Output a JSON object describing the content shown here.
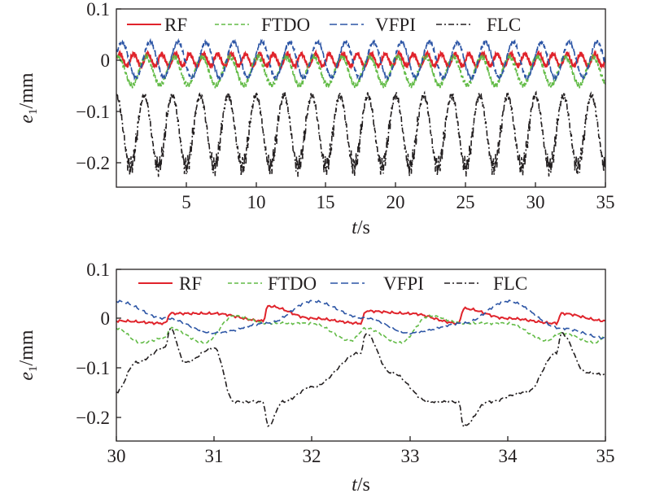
{
  "chart_data": [
    {
      "type": "line",
      "xlabel_italic": "t",
      "xlabel_unit": "/s",
      "ylabel_italic": "e",
      "ylabel_sub": "1",
      "ylabel_unit": "/mm",
      "xlim": [
        0,
        35
      ],
      "ylim": [
        -0.25,
        0.1
      ],
      "xticks": [
        "5",
        "10",
        "15",
        "20",
        "25",
        "30",
        "35"
      ],
      "yticks": [
        "0.1",
        "0",
        "−0.1",
        "−0.2"
      ],
      "grid": false,
      "legend_position": "top",
      "series": [
        {
          "name": "RF",
          "color": "#e0232b",
          "dash": "solid",
          "description": "ripple around 0, amplitude about ±0.015, period about 2 s"
        },
        {
          "name": "FTDO",
          "color": "#62bb46",
          "dash": "dashed",
          "description": "oscillates between about -0.05 and 0.01, period about 2 s"
        },
        {
          "name": "VFPI",
          "color": "#2c55a5",
          "dash": "long-dashed",
          "description": "oscillates between about -0.04 and 0.035, period about 2 s"
        },
        {
          "name": "FLC",
          "color": "#231f20",
          "dash": "dash-dot",
          "description": "oscillates between about -0.22 and -0.06, period about 2 s"
        }
      ]
    },
    {
      "type": "line",
      "xlabel_italic": "t",
      "xlabel_unit": "/s",
      "ylabel_italic": "e",
      "ylabel_sub": "1",
      "ylabel_unit": "/mm",
      "xlim": [
        30,
        35
      ],
      "ylim": [
        -0.25,
        0.1
      ],
      "xticks": [
        "30",
        "31",
        "32",
        "33",
        "34",
        "35"
      ],
      "yticks": [
        "0.1",
        "0",
        "−0.1",
        "−0.2"
      ],
      "grid": false,
      "legend_position": "top",
      "series": [
        {
          "name": "RF",
          "color": "#e0232b",
          "dash": "solid",
          "x": [
            30,
            30.5,
            30.55,
            31,
            31.5,
            31.55,
            32,
            32.5,
            32.55,
            33,
            33.5,
            33.55,
            34,
            34.5,
            34.55,
            35
          ],
          "y": [
            -0.005,
            -0.01,
            0.01,
            0.01,
            -0.005,
            0.025,
            0.0,
            -0.01,
            0.015,
            0.01,
            -0.01,
            0.02,
            0.0,
            -0.01,
            0.01,
            -0.005
          ]
        },
        {
          "name": "FTDO",
          "color": "#62bb46",
          "dash": "dashed",
          "x": [
            30,
            30.25,
            30.5,
            30.55,
            30.9,
            31.2,
            31.55,
            32.0,
            32.4,
            32.55,
            32.9,
            33.2,
            33.55,
            34.0,
            34.4,
            34.55,
            34.9,
            35
          ],
          "y": [
            -0.02,
            -0.05,
            -0.04,
            -0.02,
            -0.05,
            0.005,
            -0.01,
            -0.01,
            -0.045,
            -0.02,
            -0.05,
            0.005,
            -0.01,
            -0.01,
            -0.045,
            -0.03,
            -0.05,
            -0.035
          ]
        },
        {
          "name": "VFPI",
          "color": "#2c55a5",
          "dash": "long-dashed",
          "x": [
            30,
            30.5,
            31.0,
            31.55,
            32.0,
            32.55,
            33.0,
            33.55,
            34.0,
            34.55,
            35
          ],
          "y": [
            0.035,
            0.0,
            -0.03,
            -0.01,
            0.035,
            0.0,
            -0.03,
            -0.01,
            0.035,
            -0.02,
            -0.04
          ]
        },
        {
          "name": "FLC",
          "color": "#231f20",
          "dash": "dash-dot",
          "x": [
            30,
            30.2,
            30.5,
            30.55,
            30.7,
            31.0,
            31.2,
            31.5,
            31.55,
            31.7,
            32.0,
            32.5,
            32.55,
            32.8,
            33.2,
            33.5,
            33.55,
            33.8,
            34.2,
            34.5,
            34.55,
            34.8,
            35
          ],
          "y": [
            -0.15,
            -0.09,
            -0.06,
            -0.02,
            -0.09,
            -0.06,
            -0.17,
            -0.17,
            -0.22,
            -0.17,
            -0.14,
            -0.07,
            -0.03,
            -0.11,
            -0.17,
            -0.17,
            -0.22,
            -0.17,
            -0.15,
            -0.07,
            -0.03,
            -0.11,
            -0.115
          ]
        }
      ]
    }
  ]
}
